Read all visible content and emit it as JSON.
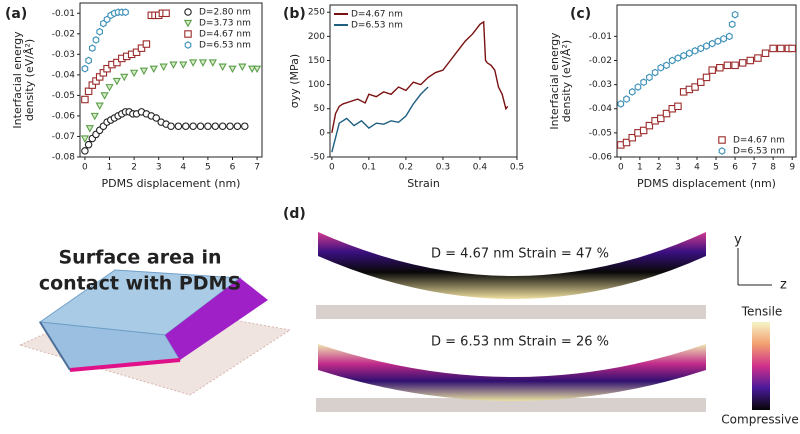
{
  "chart_data": [
    {
      "type": "scatter",
      "panel_label": "(a)",
      "xlabel": "PDMS displacement (nm)",
      "ylabel": [
        "Interfacial energy",
        "density (eV/Å²)"
      ],
      "xlim": [
        -0.2,
        7.2
      ],
      "ylim": [
        -0.08,
        -0.005
      ],
      "xticks": [
        0,
        1,
        2,
        3,
        4,
        5,
        6,
        7
      ],
      "yticks": [
        -0.08,
        -0.07,
        -0.06,
        -0.05,
        -0.04,
        -0.03,
        -0.02,
        -0.01
      ],
      "legend": "upper-right",
      "series": [
        {
          "name": "D=2.80 nm",
          "color": "#222222",
          "marker": "circle",
          "x": [
            0,
            0.15,
            0.3,
            0.45,
            0.6,
            0.75,
            0.9,
            1.05,
            1.2,
            1.35,
            1.5,
            1.65,
            1.8,
            1.95,
            2.1,
            2.3,
            2.5,
            2.7,
            2.9,
            3.1,
            3.3,
            3.5,
            3.8,
            4.1,
            4.4,
            4.7,
            5,
            5.3,
            5.6,
            5.9,
            6.2,
            6.5
          ],
          "values": [
            -0.077,
            -0.074,
            -0.071,
            -0.069,
            -0.067,
            -0.065,
            -0.063,
            -0.062,
            -0.061,
            -0.06,
            -0.059,
            -0.058,
            -0.058,
            -0.059,
            -0.059,
            -0.058,
            -0.059,
            -0.06,
            -0.061,
            -0.063,
            -0.064,
            -0.065,
            -0.065,
            -0.065,
            -0.065,
            -0.065,
            -0.065,
            -0.065,
            -0.065,
            -0.065,
            -0.065,
            -0.065
          ]
        },
        {
          "name": "D=3.73 nm",
          "color": "#5a9e4a",
          "marker": "triangle",
          "x": [
            0,
            0.2,
            0.4,
            0.6,
            0.8,
            1,
            1.3,
            1.6,
            2,
            2.4,
            2.8,
            3.2,
            3.6,
            4,
            4.4,
            4.8,
            5.2,
            5.6,
            6,
            6.4,
            6.8,
            7
          ],
          "values": [
            -0.071,
            -0.066,
            -0.06,
            -0.055,
            -0.05,
            -0.046,
            -0.043,
            -0.041,
            -0.039,
            -0.038,
            -0.037,
            -0.036,
            -0.035,
            -0.035,
            -0.034,
            -0.034,
            -0.034,
            -0.036,
            -0.037,
            -0.036,
            -0.037,
            -0.037
          ]
        },
        {
          "name": "D=4.67 nm",
          "color": "#9b2b2b",
          "marker": "square",
          "x": [
            0,
            0.15,
            0.3,
            0.45,
            0.6,
            0.75,
            0.9,
            1.1,
            1.3,
            1.5,
            1.7,
            1.9,
            2.1,
            2.3,
            2.5,
            2.7,
            2.85,
            3,
            3.15,
            3.3
          ],
          "values": [
            -0.052,
            -0.048,
            -0.045,
            -0.043,
            -0.041,
            -0.039,
            -0.037,
            -0.035,
            -0.034,
            -0.032,
            -0.031,
            -0.03,
            -0.029,
            -0.027,
            -0.025,
            -0.011,
            -0.011,
            -0.011,
            -0.01,
            -0.01
          ]
        },
        {
          "name": "D=6.53 nm",
          "color": "#3a8fb7",
          "marker": "hexagon",
          "x": [
            0,
            0.15,
            0.3,
            0.45,
            0.6,
            0.75,
            0.9,
            1.05,
            1.2,
            1.35,
            1.5,
            1.65
          ],
          "values": [
            -0.037,
            -0.033,
            -0.027,
            -0.023,
            -0.019,
            -0.015,
            -0.013,
            -0.011,
            -0.01,
            -0.0095,
            -0.0095,
            -0.0095
          ]
        }
      ]
    },
    {
      "type": "line",
      "panel_label": "(b)",
      "xlabel": "Strain",
      "ylabel": [
        "σyy (MPa)"
      ],
      "xlim": [
        -0.005,
        0.5
      ],
      "ylim": [
        -50,
        265
      ],
      "xticks": [
        0,
        0.1,
        0.2,
        0.3,
        0.4,
        0.5
      ],
      "yticks": [
        -50,
        0,
        50,
        100,
        150,
        200,
        250
      ],
      "legend": "upper-left",
      "series": [
        {
          "name": "D=4.67 nm",
          "color": "#7a1010",
          "x": [
            0,
            0.01,
            0.02,
            0.03,
            0.05,
            0.07,
            0.09,
            0.1,
            0.12,
            0.14,
            0.16,
            0.18,
            0.2,
            0.22,
            0.24,
            0.26,
            0.28,
            0.3,
            0.32,
            0.34,
            0.36,
            0.38,
            0.4,
            0.41,
            0.415,
            0.42,
            0.43,
            0.44,
            0.45,
            0.46,
            0.47,
            0.475
          ],
          "values": [
            0,
            40,
            55,
            60,
            65,
            70,
            62,
            80,
            75,
            85,
            80,
            95,
            88,
            105,
            100,
            115,
            125,
            130,
            150,
            170,
            190,
            205,
            225,
            230,
            150,
            145,
            140,
            130,
            95,
            80,
            50,
            55
          ]
        },
        {
          "name": "D=6.53 nm",
          "color": "#1f5f80",
          "x": [
            0,
            0.01,
            0.02,
            0.04,
            0.06,
            0.08,
            0.1,
            0.12,
            0.14,
            0.16,
            0.18,
            0.2,
            0.22,
            0.24,
            0.26
          ],
          "values": [
            -40,
            -10,
            20,
            30,
            15,
            25,
            10,
            20,
            18,
            25,
            22,
            35,
            60,
            80,
            95
          ]
        }
      ]
    },
    {
      "type": "scatter",
      "panel_label": "(c)",
      "xlabel": "PDMS displacement (nm)",
      "ylabel": [
        "Interfacial energy",
        "density (eV/Å²)"
      ],
      "xlim": [
        -0.2,
        9.2
      ],
      "ylim": [
        -0.06,
        0.003
      ],
      "xticks": [
        0,
        1,
        2,
        3,
        4,
        5,
        6,
        7,
        8,
        9
      ],
      "yticks": [
        -0.06,
        -0.05,
        -0.04,
        -0.03,
        -0.02,
        -0.01
      ],
      "legend": "lower-right",
      "series": [
        {
          "name": "D=4.67 nm",
          "color": "#9b2b2b",
          "marker": "square",
          "x": [
            0,
            0.3,
            0.6,
            0.9,
            1.2,
            1.5,
            1.8,
            2.1,
            2.4,
            2.7,
            3,
            3.3,
            3.6,
            3.9,
            4.2,
            4.5,
            4.8,
            5.2,
            5.6,
            6,
            6.4,
            6.8,
            7.2,
            7.6,
            8,
            8.4,
            8.8,
            9
          ],
          "values": [
            -0.055,
            -0.054,
            -0.052,
            -0.05,
            -0.049,
            -0.047,
            -0.045,
            -0.044,
            -0.042,
            -0.04,
            -0.039,
            -0.033,
            -0.032,
            -0.031,
            -0.029,
            -0.027,
            -0.024,
            -0.023,
            -0.022,
            -0.022,
            -0.021,
            -0.02,
            -0.019,
            -0.017,
            -0.015,
            -0.015,
            -0.015,
            -0.015
          ]
        },
        {
          "name": "D=6.53 nm",
          "color": "#3a8fb7",
          "marker": "hexagon",
          "x": [
            0,
            0.3,
            0.6,
            0.9,
            1.2,
            1.5,
            1.8,
            2.1,
            2.4,
            2.7,
            3,
            3.3,
            3.6,
            3.9,
            4.2,
            4.5,
            4.8,
            5.1,
            5.4,
            5.7,
            5.85,
            6
          ],
          "values": [
            -0.038,
            -0.036,
            -0.033,
            -0.031,
            -0.029,
            -0.027,
            -0.025,
            -0.023,
            -0.022,
            -0.02,
            -0.019,
            -0.018,
            -0.017,
            -0.016,
            -0.015,
            -0.014,
            -0.013,
            -0.012,
            -0.011,
            -0.01,
            -0.005,
            -0.001
          ]
        }
      ]
    }
  ],
  "illustration": {
    "caption": [
      "Surface area in",
      "contact with PDMS"
    ]
  },
  "panel_d": {
    "label": "(d)",
    "rows": [
      "D = 4.67 nm  Strain = 47 %",
      "D = 6.53 nm  Strain = 26 %"
    ],
    "axes": [
      "y",
      "z"
    ],
    "colorbar": [
      "Tensile",
      "Compressive"
    ]
  }
}
